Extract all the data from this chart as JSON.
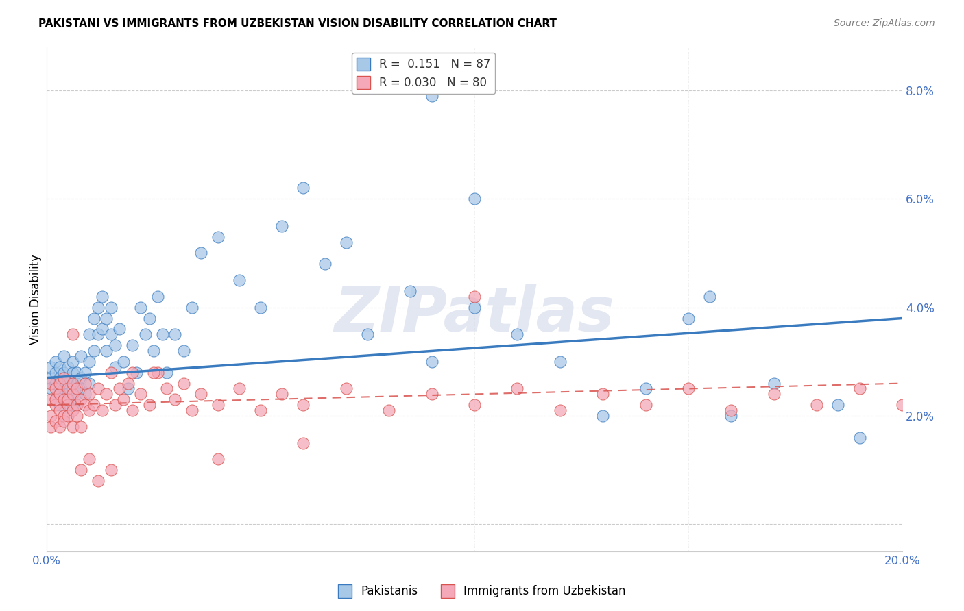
{
  "title": "PAKISTANI VS IMMIGRANTS FROM UZBEKISTAN VISION DISABILITY CORRELATION CHART",
  "source": "Source: ZipAtlas.com",
  "ylabel": "Vision Disability",
  "xlim": [
    0.0,
    0.2
  ],
  "ylim": [
    -0.005,
    0.088
  ],
  "watermark": "ZIPatlas",
  "legend_r1": "R =  0.151",
  "legend_n1": "N = 87",
  "legend_r2": "R = 0.030",
  "legend_n2": "N = 80",
  "color_blue": "#a8c8e8",
  "color_pink": "#f4a8b8",
  "color_blue_line": "#3a7bbf",
  "color_pink_line": "#d9534f",
  "pakistanis_x": [
    0.001,
    0.001,
    0.001,
    0.002,
    0.002,
    0.002,
    0.002,
    0.003,
    0.003,
    0.003,
    0.003,
    0.004,
    0.004,
    0.004,
    0.004,
    0.005,
    0.005,
    0.005,
    0.005,
    0.005,
    0.006,
    0.006,
    0.006,
    0.006,
    0.007,
    0.007,
    0.007,
    0.007,
    0.008,
    0.008,
    0.008,
    0.009,
    0.009,
    0.01,
    0.01,
    0.01,
    0.011,
    0.011,
    0.012,
    0.012,
    0.013,
    0.013,
    0.014,
    0.014,
    0.015,
    0.015,
    0.016,
    0.016,
    0.017,
    0.018,
    0.019,
    0.02,
    0.021,
    0.022,
    0.023,
    0.024,
    0.025,
    0.026,
    0.027,
    0.028,
    0.03,
    0.032,
    0.034,
    0.036,
    0.04,
    0.045,
    0.05,
    0.055,
    0.06,
    0.065,
    0.07,
    0.075,
    0.085,
    0.09,
    0.1,
    0.11,
    0.12,
    0.13,
    0.14,
    0.15,
    0.155,
    0.16,
    0.17,
    0.185,
    0.19,
    0.09,
    0.1
  ],
  "pakistanis_y": [
    0.027,
    0.025,
    0.029,
    0.023,
    0.028,
    0.026,
    0.03,
    0.024,
    0.027,
    0.022,
    0.029,
    0.025,
    0.028,
    0.023,
    0.031,
    0.022,
    0.026,
    0.029,
    0.024,
    0.027,
    0.025,
    0.028,
    0.022,
    0.03,
    0.026,
    0.024,
    0.028,
    0.022,
    0.027,
    0.025,
    0.031,
    0.024,
    0.028,
    0.026,
    0.03,
    0.035,
    0.032,
    0.038,
    0.035,
    0.04,
    0.036,
    0.042,
    0.038,
    0.032,
    0.04,
    0.035,
    0.033,
    0.029,
    0.036,
    0.03,
    0.025,
    0.033,
    0.028,
    0.04,
    0.035,
    0.038,
    0.032,
    0.042,
    0.035,
    0.028,
    0.035,
    0.032,
    0.04,
    0.05,
    0.053,
    0.045,
    0.04,
    0.055,
    0.062,
    0.048,
    0.052,
    0.035,
    0.043,
    0.03,
    0.04,
    0.035,
    0.03,
    0.02,
    0.025,
    0.038,
    0.042,
    0.02,
    0.026,
    0.022,
    0.016,
    0.079,
    0.06
  ],
  "uzbek_x": [
    0.001,
    0.001,
    0.001,
    0.001,
    0.002,
    0.002,
    0.002,
    0.002,
    0.003,
    0.003,
    0.003,
    0.003,
    0.004,
    0.004,
    0.004,
    0.004,
    0.005,
    0.005,
    0.005,
    0.005,
    0.006,
    0.006,
    0.006,
    0.006,
    0.007,
    0.007,
    0.007,
    0.008,
    0.008,
    0.009,
    0.009,
    0.01,
    0.01,
    0.011,
    0.012,
    0.013,
    0.014,
    0.015,
    0.016,
    0.017,
    0.018,
    0.019,
    0.02,
    0.022,
    0.024,
    0.026,
    0.028,
    0.03,
    0.032,
    0.034,
    0.036,
    0.04,
    0.045,
    0.05,
    0.055,
    0.06,
    0.07,
    0.08,
    0.09,
    0.1,
    0.11,
    0.12,
    0.13,
    0.14,
    0.15,
    0.16,
    0.17,
    0.18,
    0.19,
    0.2,
    0.1,
    0.06,
    0.04,
    0.025,
    0.02,
    0.015,
    0.012,
    0.01,
    0.008,
    0.006
  ],
  "uzbek_y": [
    0.02,
    0.023,
    0.026,
    0.018,
    0.022,
    0.025,
    0.019,
    0.023,
    0.021,
    0.024,
    0.018,
    0.026,
    0.02,
    0.023,
    0.027,
    0.019,
    0.022,
    0.025,
    0.02,
    0.023,
    0.021,
    0.024,
    0.018,
    0.026,
    0.022,
    0.025,
    0.02,
    0.023,
    0.018,
    0.022,
    0.026,
    0.021,
    0.024,
    0.022,
    0.025,
    0.021,
    0.024,
    0.028,
    0.022,
    0.025,
    0.023,
    0.026,
    0.021,
    0.024,
    0.022,
    0.028,
    0.025,
    0.023,
    0.026,
    0.021,
    0.024,
    0.022,
    0.025,
    0.021,
    0.024,
    0.022,
    0.025,
    0.021,
    0.024,
    0.022,
    0.025,
    0.021,
    0.024,
    0.022,
    0.025,
    0.021,
    0.024,
    0.022,
    0.025,
    0.022,
    0.042,
    0.015,
    0.012,
    0.028,
    0.028,
    0.01,
    0.008,
    0.012,
    0.01,
    0.035
  ],
  "blue_line_x": [
    0.0,
    0.2
  ],
  "blue_line_y": [
    0.027,
    0.038
  ],
  "pink_line_x": [
    0.0,
    0.2
  ],
  "pink_line_y": [
    0.022,
    0.026
  ],
  "background_color": "#ffffff",
  "grid_color": "#cccccc",
  "ytick_positions": [
    0.0,
    0.02,
    0.04,
    0.06,
    0.08
  ],
  "ytick_labels": [
    "",
    "2.0%",
    "4.0%",
    "6.0%",
    "8.0%"
  ],
  "xtick_positions": [
    0.0,
    0.05,
    0.1,
    0.15,
    0.2
  ],
  "xtick_labels": [
    "0.0%",
    "",
    "",
    "",
    "20.0%"
  ]
}
